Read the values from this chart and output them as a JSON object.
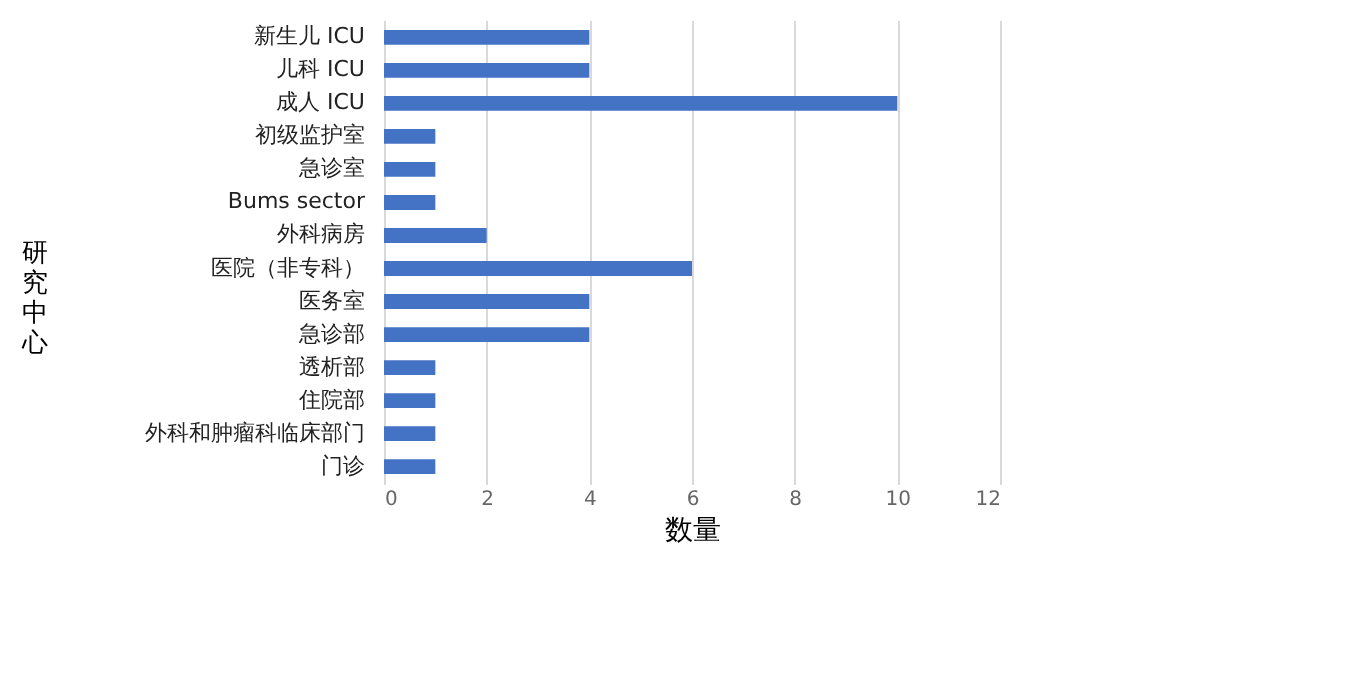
{
  "chart_data": {
    "type": "bar",
    "orientation": "horizontal",
    "xlabel": "数量",
    "ylabel": "研究中心",
    "categories": [
      "新生儿 ICU",
      "儿科 ICU",
      "成人 ICU",
      "初级监护室",
      "急诊室",
      "Bums sector",
      "外科病房",
      "医院（非专科）",
      "医务室",
      "急诊部",
      "透析部",
      "住院部",
      "外科和肿瘤科临床部门",
      "门诊"
    ],
    "values": [
      4,
      4,
      10,
      1,
      1,
      1,
      2,
      6,
      4,
      4,
      1,
      1,
      1,
      1
    ],
    "color": "#4472c4",
    "xlim": [
      0,
      12
    ],
    "xticks": [
      0,
      2,
      4,
      6,
      8,
      10,
      12
    ],
    "grid": "x"
  }
}
